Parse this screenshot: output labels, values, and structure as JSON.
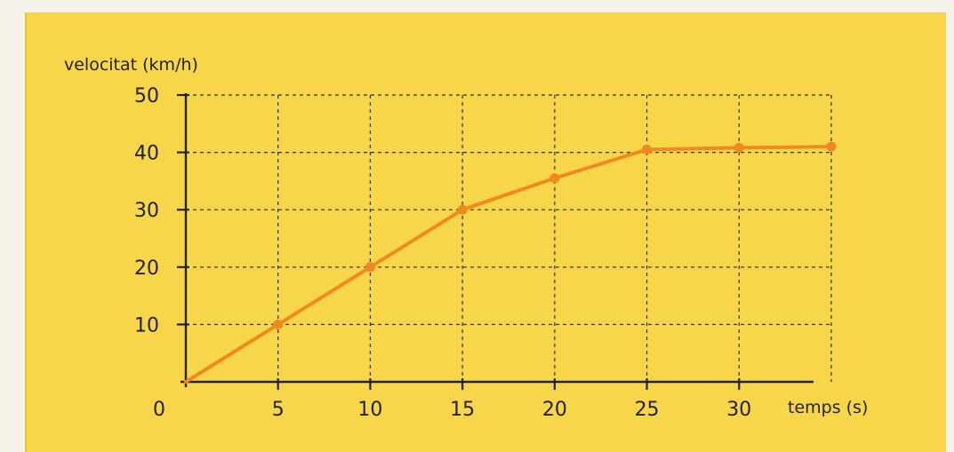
{
  "chart_data": {
    "type": "line",
    "ylabel": "velocitat (km/h)",
    "xlabel": "temps (s)",
    "x": [
      0,
      5,
      10,
      15,
      20,
      25,
      30,
      35
    ],
    "y": [
      0,
      10,
      20,
      30,
      35.5,
      40.5,
      40.8,
      41
    ],
    "xlim": [
      0,
      35
    ],
    "ylim": [
      0,
      50
    ],
    "xticks": [
      5,
      10,
      15,
      20,
      25,
      30
    ],
    "yticks": [
      10,
      20,
      30,
      40,
      50
    ],
    "origin_label": "0",
    "grid": true,
    "colors": {
      "line": "#f08a1c",
      "grid": "#2f2f2f",
      "background": "#f7d64a"
    }
  }
}
